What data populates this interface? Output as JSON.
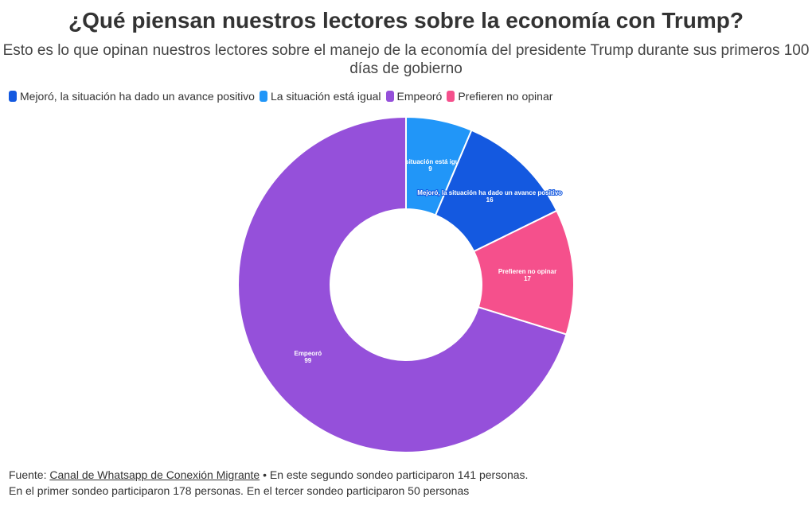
{
  "title": "¿Qué piensan nuestros lectores sobre la economía con Trump?",
  "subtitle": "Esto es lo que opinan nuestros lectores sobre el manejo de la economía del presidente Trump durante sus primeros 100 días de gobierno",
  "footer": {
    "prefix": "Fuente: ",
    "link": "Canal de Whatsapp de Conexión Migrante",
    "line1_rest": " • En este segundo sondeo participaron 141 personas.",
    "line2": "En el primer sondeo participaron 178 personas. En el tercer sondeo participaron 50 personas"
  },
  "chart_data": {
    "type": "pie",
    "donut": true,
    "legend_placement": "top-left",
    "legend": [
      {
        "label": "Mejoró, la situación ha dado un avance positivo",
        "color": "#1459E0"
      },
      {
        "label": "La situación está igual",
        "color": "#2196F8"
      },
      {
        "label": "Empeoró",
        "color": "#9550DA"
      },
      {
        "label": "Prefieren no opinar",
        "color": "#F5508C"
      }
    ],
    "slices": [
      {
        "label": "La situación está igual",
        "value": 9,
        "color": "#2196F8"
      },
      {
        "label": "Mejoró, la situación ha dado un avance positivo",
        "value": 16,
        "color": "#1459E0"
      },
      {
        "label": "Prefieren no opinar",
        "value": 17,
        "color": "#F5508C"
      },
      {
        "label": "Empeoró",
        "value": 99,
        "color": "#9550DA"
      }
    ]
  }
}
